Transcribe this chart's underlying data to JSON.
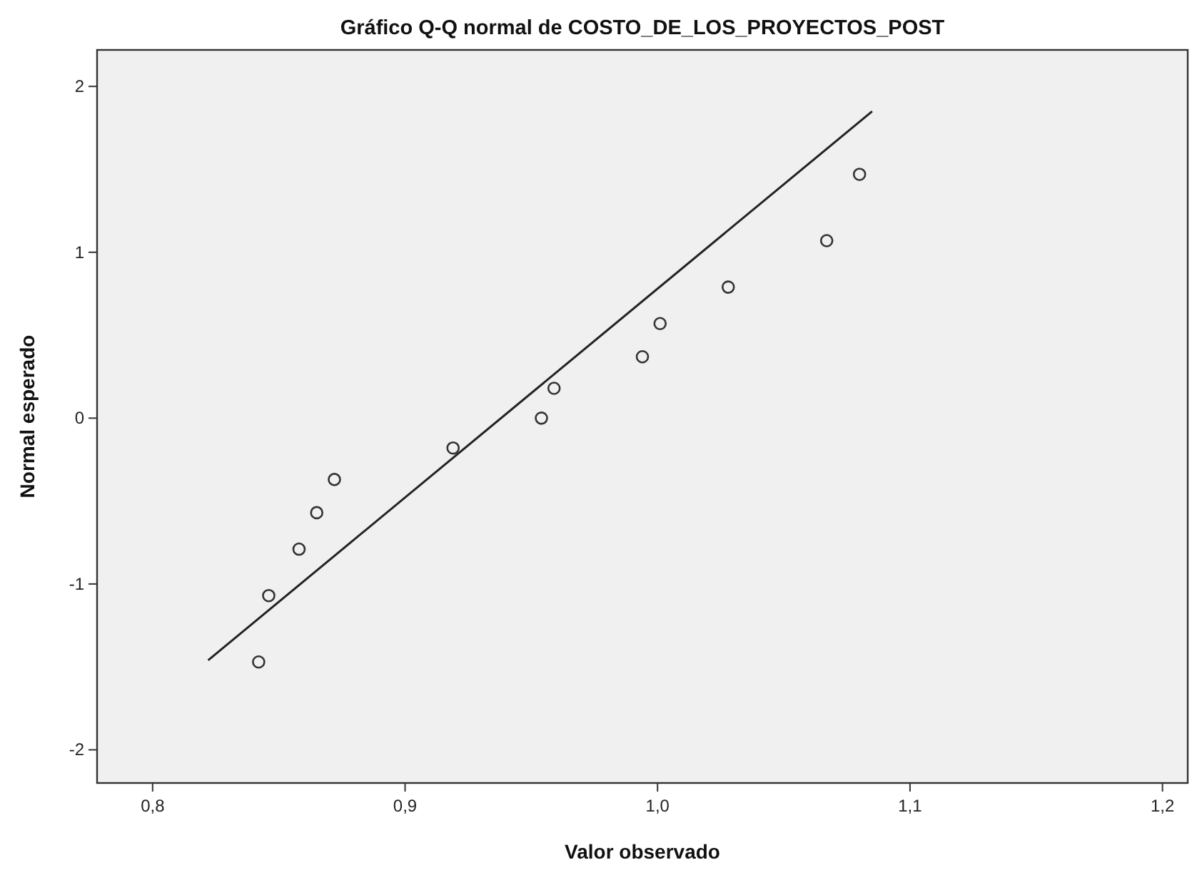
{
  "chart_data": {
    "type": "scatter",
    "title": "Gráfico Q-Q normal de COSTO_DE_LOS_PROYECTOS_POST",
    "xlabel": "Valor observado",
    "ylabel": "Normal esperado",
    "xlim": [
      0.778,
      1.21
    ],
    "xticks": [
      {
        "value": 0.8,
        "label": "0,8"
      },
      {
        "value": 0.9,
        "label": "0,9"
      },
      {
        "value": 1.0,
        "label": "1,0"
      },
      {
        "value": 1.1,
        "label": "1,1"
      },
      {
        "value": 1.2,
        "label": "1,2"
      }
    ],
    "ylim": [
      -2.2,
      2.22
    ],
    "yticks": [
      -2,
      -1,
      0,
      1,
      2
    ],
    "grid": false,
    "series": [
      {
        "color": "#333333",
        "marker": "circle",
        "x": [
          0.842,
          0.846,
          0.858,
          0.865,
          0.872,
          0.919,
          0.954,
          0.959,
          0.994,
          1.001,
          1.028,
          1.067,
          1.08
        ],
        "values": [
          -1.47,
          -1.07,
          -0.79,
          -0.57,
          -0.37,
          -0.18,
          0,
          0.18,
          0.37,
          0.57,
          0.79,
          1.07,
          1.47
        ]
      },
      {
        "type": "line",
        "color": "#222222",
        "line_style": "solid",
        "x": [
          0.822,
          1.085
        ],
        "values": [
          -1.46,
          1.85
        ]
      }
    ]
  }
}
